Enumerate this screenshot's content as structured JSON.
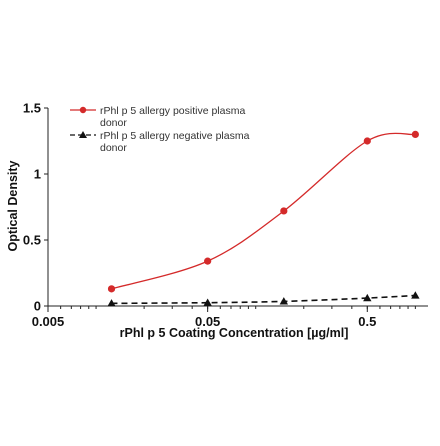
{
  "colors": {
    "positive": "#d42a2a",
    "negative": "#111111",
    "axis": "#222222"
  },
  "chart_data": {
    "type": "line",
    "xlabel": "rPhl p 5 Coating Concentration [µg/ml]",
    "ylabel": "Optical Density",
    "xscale": "log",
    "xlim": [
      0.005,
      1.2
    ],
    "ylim": [
      0,
      1.5
    ],
    "x_ticks": [
      {
        "value": 0.005,
        "label": "0.005"
      },
      {
        "value": 0.05,
        "label": "0.05"
      },
      {
        "value": 0.5,
        "label": "0.5"
      }
    ],
    "y_ticks": [
      {
        "value": 0,
        "label": "0"
      },
      {
        "value": 0.5,
        "label": "0.5"
      },
      {
        "value": 1,
        "label": "1"
      },
      {
        "value": 1.5,
        "label": "1.5"
      }
    ],
    "grid": false,
    "legend_position": "top-left",
    "series": [
      {
        "name": "rPhl p 5 allergy positive plasma donor",
        "legend_lines": [
          "rPhl p 5 allergy positive plasma",
          "donor"
        ],
        "marker": "circle",
        "line_style": "solid",
        "color": "#d42a2a",
        "x": [
          0.0125,
          0.05,
          0.15,
          0.5,
          1.0
        ],
        "y": [
          0.13,
          0.34,
          0.72,
          1.25,
          1.3
        ]
      },
      {
        "name": "rPhl p 5 allergy negative plasma donor",
        "legend_lines": [
          "rPhl p 5 allergy negative plasma",
          "donor"
        ],
        "marker": "triangle",
        "line_style": "dashed",
        "color": "#111111",
        "x": [
          0.0125,
          0.05,
          0.15,
          0.5,
          1.0
        ],
        "y": [
          0.02,
          0.025,
          0.035,
          0.06,
          0.08
        ]
      }
    ]
  }
}
